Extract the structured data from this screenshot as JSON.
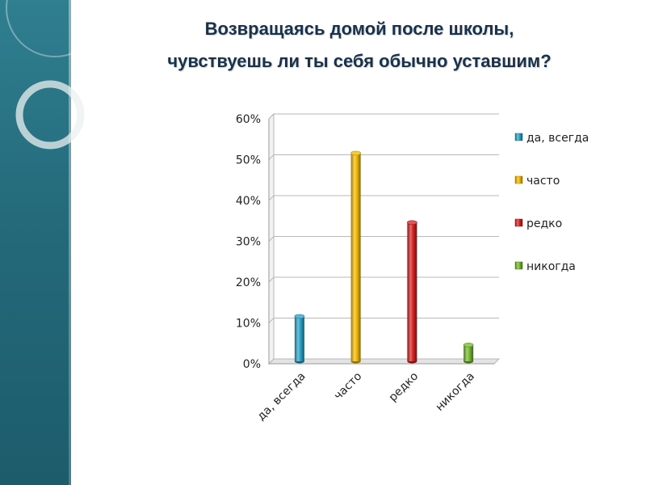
{
  "slide": {
    "title_line1": "Возвращаясь домой после школы,",
    "title_line2": "чувствуешь ли ты себя  обычно уставшим?"
  },
  "colors": {
    "side_panel": "#246a7b",
    "title": "#17324a",
    "grid": "#c9c9c9"
  },
  "chart_data": {
    "type": "bar",
    "categories": [
      "да, всегда",
      "часто",
      "редко",
      "никогда"
    ],
    "values": [
      0.11,
      0.51,
      0.34,
      0.04
    ],
    "colors": [
      "#2aa0c4",
      "#f2b800",
      "#d41f1f",
      "#74b62e"
    ],
    "legend": [
      "да, всегда",
      "часто",
      "редко",
      "никогда"
    ],
    "legend_position": "right",
    "ylim": [
      0,
      0.6
    ],
    "yticks": [
      0,
      0.1,
      0.2,
      0.3,
      0.4,
      0.5,
      0.6
    ],
    "ytick_labels": [
      "0%",
      "10%",
      "20%",
      "30%",
      "40%",
      "50%",
      "60%"
    ],
    "grid": true,
    "style": "3d-cylinder"
  }
}
